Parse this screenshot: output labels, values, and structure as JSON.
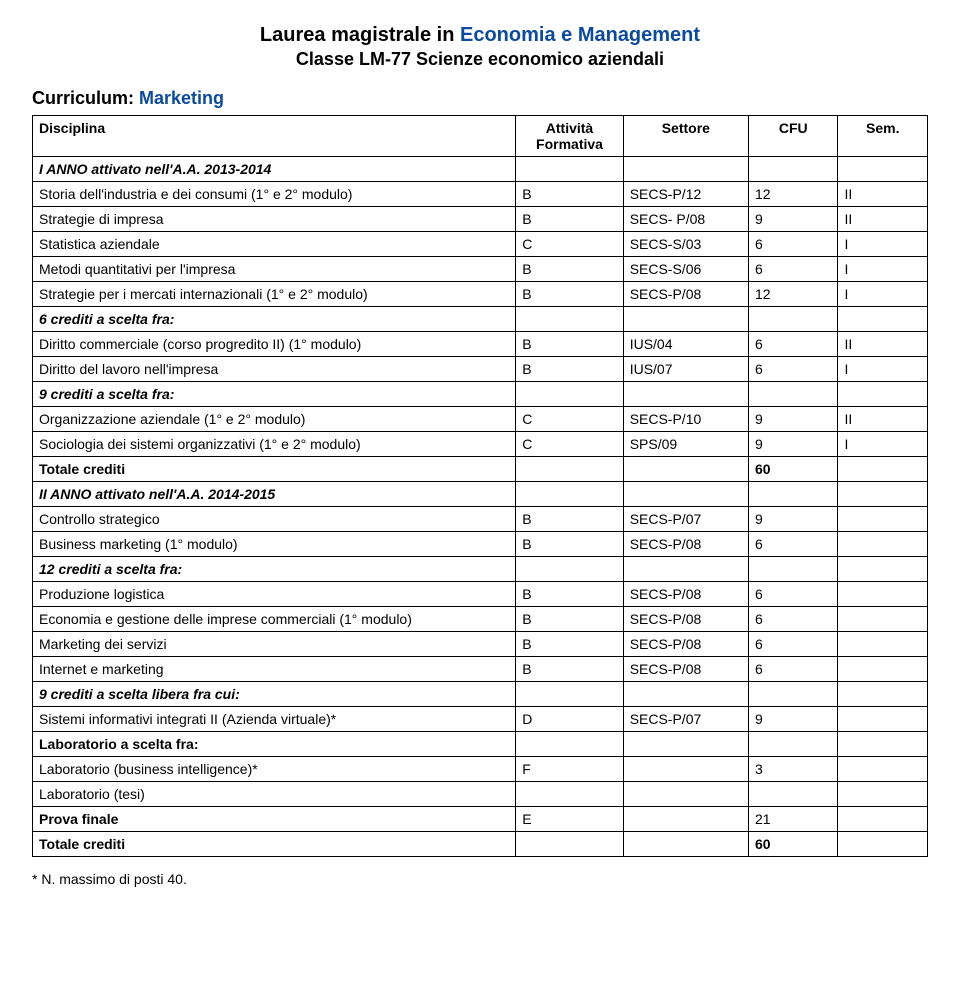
{
  "title": {
    "prefix": "Laurea magistrale in ",
    "highlight": "Economia e Management",
    "subtitle": "Classe LM-77 Scienze economico aziendali"
  },
  "curriculum": {
    "label": "Curriculum: ",
    "value": "Marketing"
  },
  "table": {
    "headers": {
      "disciplina": "Disciplina",
      "formativa": "Attività Formativa",
      "settore": "Settore",
      "cfu": "CFU",
      "sem": "Sem."
    },
    "rows": [
      {
        "type": "section",
        "label": "I ANNO attivato nell'A.A. 2013-2014"
      },
      {
        "type": "course",
        "disc": "Storia dell'industria e dei consumi (1° e 2° modulo)",
        "form": "B",
        "sett": "SECS-P/12",
        "cfu": "12",
        "sem": "II"
      },
      {
        "type": "course",
        "disc": "Strategie di impresa",
        "form": "B",
        "sett": "SECS- P/08",
        "cfu": "9",
        "sem": "II"
      },
      {
        "type": "course",
        "disc": "Statistica aziendale",
        "form": "C",
        "sett": "SECS-S/03",
        "cfu": "6",
        "sem": "I"
      },
      {
        "type": "course",
        "disc": "Metodi quantitativi per l'impresa",
        "form": "B",
        "sett": "SECS-S/06",
        "cfu": "6",
        "sem": "I"
      },
      {
        "type": "course",
        "disc": "Strategie per i mercati internazionali (1° e 2° modulo)",
        "form": "B",
        "sett": "SECS-P/08",
        "cfu": "12",
        "sem": "I"
      },
      {
        "type": "group",
        "label": "6 crediti a scelta fra:"
      },
      {
        "type": "course",
        "disc": "Diritto commerciale (corso progredito II) (1° modulo)",
        "form": "B",
        "sett": "IUS/04",
        "cfu": "6",
        "sem": "II"
      },
      {
        "type": "course",
        "disc": "Diritto del lavoro nell'impresa",
        "form": "B",
        "sett": "IUS/07",
        "cfu": "6",
        "sem": "I"
      },
      {
        "type": "group",
        "label": "9 crediti a scelta fra:"
      },
      {
        "type": "course",
        "disc": "Organizzazione aziendale (1° e 2° modulo)",
        "form": "C",
        "sett": "SECS-P/10",
        "cfu": "9",
        "sem": "II"
      },
      {
        "type": "course",
        "disc": "Sociologia dei sistemi organizzativi (1° e 2° modulo)",
        "form": "C",
        "sett": "SPS/09",
        "cfu": "9",
        "sem": "I"
      },
      {
        "type": "total",
        "label": "Totale crediti",
        "cfu": "60"
      },
      {
        "type": "section",
        "label": "II ANNO attivato nell'A.A. 2014-2015"
      },
      {
        "type": "course",
        "disc": "Controllo strategico",
        "form": "B",
        "sett": "SECS-P/07",
        "cfu": "9",
        "sem": ""
      },
      {
        "type": "course",
        "disc": "Business marketing (1° modulo)",
        "form": "B",
        "sett": "SECS-P/08",
        "cfu": "6",
        "sem": ""
      },
      {
        "type": "group",
        "label": "12 crediti a scelta fra:"
      },
      {
        "type": "course",
        "disc": "Produzione logistica",
        "form": "B",
        "sett": "SECS-P/08",
        "cfu": "6",
        "sem": ""
      },
      {
        "type": "course",
        "disc": "Economia e gestione delle imprese commerciali (1° modulo)",
        "form": "B",
        "sett": "SECS-P/08",
        "cfu": "6",
        "sem": ""
      },
      {
        "type": "course",
        "disc": "Marketing dei servizi",
        "form": "B",
        "sett": "SECS-P/08",
        "cfu": "6",
        "sem": ""
      },
      {
        "type": "course",
        "disc": "Internet e marketing",
        "form": "B",
        "sett": "SECS-P/08",
        "cfu": "6",
        "sem": ""
      },
      {
        "type": "group",
        "label": "9 crediti a scelta libera fra cui:"
      },
      {
        "type": "course",
        "disc": "Sistemi informativi integrati II (Azienda virtuale)*",
        "form": "D",
        "sett": "SECS-P/07",
        "cfu": "9",
        "sem": ""
      },
      {
        "type": "labhead",
        "label": "Laboratorio a scelta fra:"
      },
      {
        "type": "course",
        "disc": "Laboratorio (business intelligence)*",
        "form": "F",
        "sett": "",
        "cfu": "3",
        "sem": ""
      },
      {
        "type": "labline",
        "disc": "Laboratorio (tesi)"
      },
      {
        "type": "course",
        "disc": "Prova finale",
        "form": "E",
        "sett": "",
        "cfu": "21",
        "sem": "",
        "bold": true
      },
      {
        "type": "total",
        "label": "Totale crediti",
        "cfu": "60"
      }
    ]
  },
  "footnote": "* N. massimo di posti 40."
}
